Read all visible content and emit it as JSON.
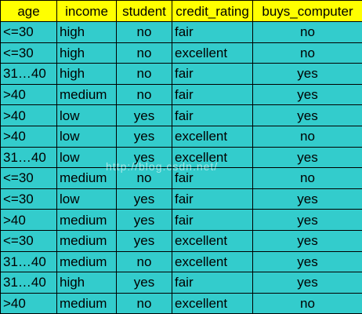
{
  "table": {
    "headers": [
      "age",
      "income",
      "student",
      "credit_rating",
      "buys_computer"
    ],
    "rows": [
      [
        "<=30",
        "high",
        "no",
        "fair",
        "no"
      ],
      [
        "<=30",
        "high",
        "no",
        "excellent",
        "no"
      ],
      [
        "31…40",
        "high",
        "no",
        "fair",
        "yes"
      ],
      [
        ">40",
        "medium",
        "no",
        "fair",
        "yes"
      ],
      [
        ">40",
        "low",
        "yes",
        "fair",
        "yes"
      ],
      [
        ">40",
        "low",
        "yes",
        "excellent",
        "no"
      ],
      [
        "31…40",
        "low",
        "yes",
        "excellent",
        "yes"
      ],
      [
        "<=30",
        "medium",
        "no",
        "fair",
        "no"
      ],
      [
        "<=30",
        "low",
        "yes",
        "fair",
        "yes"
      ],
      [
        ">40",
        "medium",
        "yes",
        "fair",
        "yes"
      ],
      [
        "<=30",
        "medium",
        "yes",
        "excellent",
        "yes"
      ],
      [
        "31…40",
        "medium",
        "no",
        "excellent",
        "yes"
      ],
      [
        "31…40",
        "high",
        "yes",
        "fair",
        "yes"
      ],
      [
        ">40",
        "medium",
        "no",
        "excellent",
        "no"
      ]
    ]
  },
  "watermark": "http://blog.csdn.net/",
  "colors": {
    "header_bg": "#ffff00",
    "cell_bg": "#33cccc",
    "border": "#000000"
  }
}
